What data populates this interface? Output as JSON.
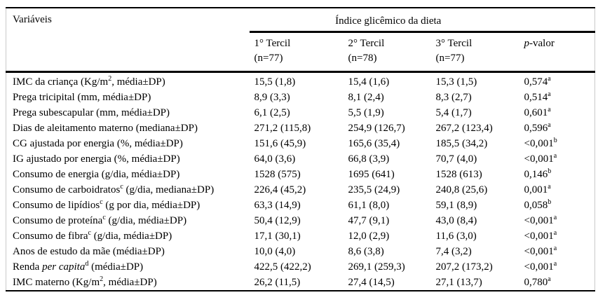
{
  "table": {
    "variables_header": "Variáveis",
    "group_header": "Índice glicêmico da dieta",
    "tercils": [
      {
        "label": "1° Tercil",
        "n": "(n=77)"
      },
      {
        "label": "2° Tercil",
        "n": "(n=78)"
      },
      {
        "label": "3° Tercil",
        "n": "(n=77)"
      }
    ],
    "pvalue_col": {
      "italic": "p",
      "rest": "-valor"
    },
    "rows": [
      {
        "pre": "IMC da criança (Kg/m",
        "italic": "",
        "sup": "2",
        "post": ", média±DP)",
        "t1": "15,5 (1,8)",
        "t2": "15,4 (1,6)",
        "t3": "15,3 (1,5)",
        "p": "0,574",
        "psup": "a"
      },
      {
        "pre": "Prega tricipital (mm, média±DP)",
        "italic": "",
        "sup": "",
        "post": "",
        "t1": "8,9 (3,3)",
        "t2": "8,1 (2,4)",
        "t3": "8,3 (2,7)",
        "p": "0,514",
        "psup": "a"
      },
      {
        "pre": "Prega subescapular (mm, média±DP)",
        "italic": "",
        "sup": "",
        "post": "",
        "t1": "6,1 (2,5)",
        "t2": "5,5 (1,9)",
        "t3": "5,4 (1,7)",
        "p": "0,601",
        "psup": "a"
      },
      {
        "pre": "Dias de aleitamento materno (mediana±DP)",
        "italic": "",
        "sup": "",
        "post": "",
        "t1": "271,2 (115,8)",
        "t2": "254,9 (126,7)",
        "t3": "267,2 (123,4)",
        "p": "0,596",
        "psup": "a"
      },
      {
        "pre": "CG ajustada por energia (%, média±DP)",
        "italic": "",
        "sup": "",
        "post": "",
        "t1": "151,6 (45,9)",
        "t2": "165,6 (35,4)",
        "t3": "185,5 (34,2)",
        "p": "<0,001",
        "psup": "b"
      },
      {
        "pre": "IG ajustado por energia (%, média±DP)",
        "italic": "",
        "sup": "",
        "post": "",
        "t1": "64,0 (3,6)",
        "t2": "66,8 (3,9)",
        "t3": "70,7 (4,0)",
        "p": "<0,001",
        "psup": "a"
      },
      {
        "pre": "Consumo de energia (g/dia, média±DP)",
        "italic": "",
        "sup": "",
        "post": "",
        "t1": "1528 (575)",
        "t2": "1695 (641)",
        "t3": "1528 (613)",
        "p": "0,146",
        "psup": "b"
      },
      {
        "pre": "Consumo de carboidratos",
        "italic": "",
        "sup": "c",
        "post": " (g/dia, mediana±DP)",
        "t1": "226,4 (45,2)",
        "t2": "235,5 (24,9)",
        "t3": "240,8 (25,6)",
        "p": "0,001",
        "psup": "a"
      },
      {
        "pre": "Consumo de lipídios",
        "italic": "",
        "sup": "c",
        "post": " (g por dia, média±DP)",
        "t1": "63,3 (14,9)",
        "t2": "61,1 (8,0)",
        "t3": "59,1 (8,9)",
        "p": "0,058",
        "psup": "b"
      },
      {
        "pre": "Consumo de proteína",
        "italic": "",
        "sup": "c",
        "post": " (g/dia, média±DP)",
        "t1": "50,4 (12,9)",
        "t2": "47,7 (9,1)",
        "t3": "43,0 (8,4)",
        "p": "<0,001",
        "psup": "a"
      },
      {
        "pre": "Consumo de fibra",
        "italic": "",
        "sup": "c",
        "post": " (g/dia, média±DP)",
        "t1": "17,1 (30,1)",
        "t2": "12,0 (2,9)",
        "t3": "11,6 (3,0)",
        "p": "<0,001",
        "psup": "a"
      },
      {
        "pre": "Anos de estudo da mãe (média±DP)",
        "italic": "",
        "sup": "",
        "post": "",
        "t1": "10,0 (4,0)",
        "t2": "8,6 (3,8)",
        "t3": "7,4 (3,2)",
        "p": "<0,001",
        "psup": "a"
      },
      {
        "pre": "Renda ",
        "italic": "per capita",
        "sup": "d",
        "post": " (média±DP)",
        "t1": "422,5 (422,2)",
        "t2": "269,1 (259,3)",
        "t3": "207,2 (173,2)",
        "p": "<0,001",
        "psup": "a"
      },
      {
        "pre": "IMC materno (Kg/m",
        "italic": "",
        "sup": "2",
        "post": ", média±DP)",
        "t1": "26,2 (11,5)",
        "t2": "27,4 (14,5)",
        "t3": "27,1 (13,7)",
        "p": "0,780",
        "psup": "a"
      }
    ]
  }
}
